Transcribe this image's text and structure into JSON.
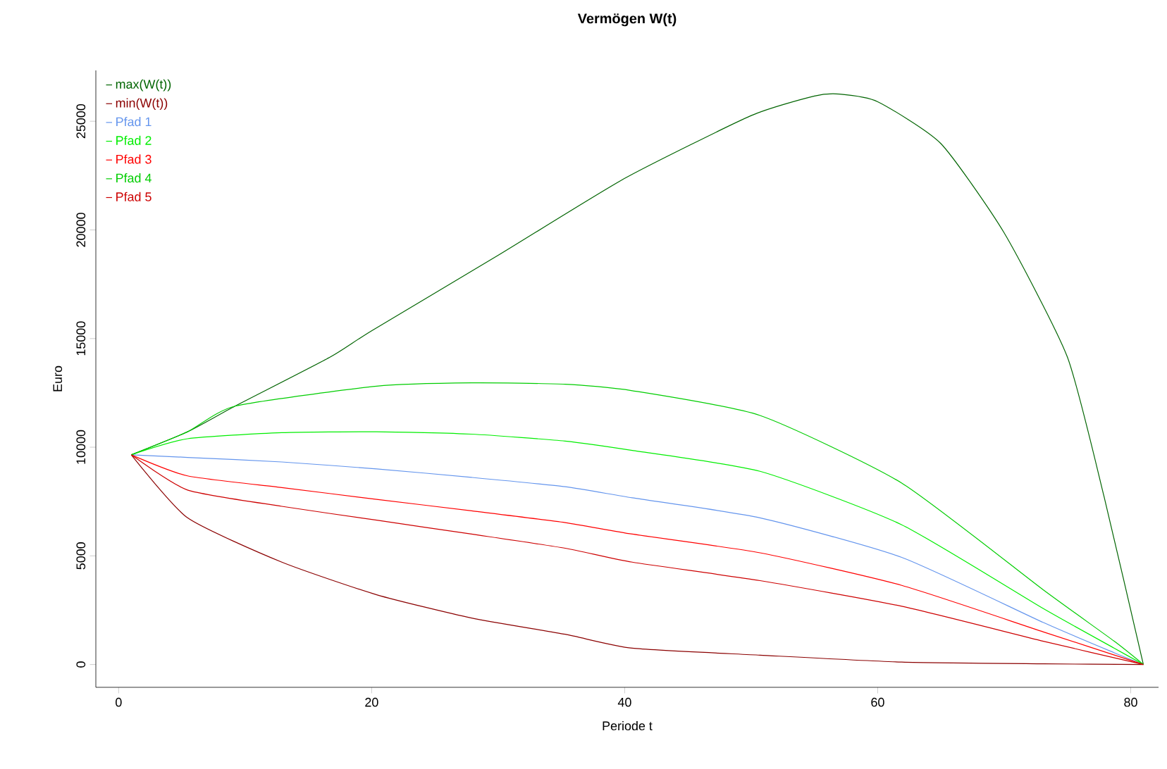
{
  "chart_data": {
    "type": "line",
    "title": "Vermögen W(t)",
    "xlabel": "Periode t",
    "ylabel": "Euro",
    "xlim": [
      -1.8,
      82.2
    ],
    "ylim": [
      -1050,
      27340
    ],
    "xticks": [
      0,
      20,
      40,
      60,
      80
    ],
    "yticks": [
      0,
      5000,
      10000,
      15000,
      20000,
      25000
    ],
    "legend": "top left",
    "grid": false,
    "marker": "none",
    "line_style": "solid",
    "series": [
      {
        "name": "max(W(t))",
        "color": "#006400",
        "x": [
          1,
          5.45,
          9.2,
          16.7,
          20,
          30,
          40,
          50,
          55,
          57,
          60,
          65,
          70,
          75,
          77.9,
          81
        ],
        "values": [
          9650,
          10710,
          11890,
          14140,
          15360,
          18830,
          22370,
          25260,
          26160,
          26250,
          25900,
          23970,
          19860,
          14140,
          7710,
          0
        ]
      },
      {
        "name": "min(W(t))",
        "color": "#8b0000",
        "x": [
          1,
          5.45,
          12.9,
          20.4,
          27.9,
          35.3,
          40.6,
          50.7,
          61.9,
          73.1,
          81
        ],
        "values": [
          9650,
          6750,
          4710,
          3210,
          2140,
          1390,
          750,
          430,
          110,
          30,
          0
        ]
      },
      {
        "name": "Pfad 1",
        "color": "#6495ed",
        "x": [
          1,
          5.45,
          12.9,
          20.4,
          27.9,
          35.3,
          40.6,
          50.7,
          61.9,
          73.1,
          78.7,
          81
        ],
        "values": [
          9650,
          9530,
          9320,
          9000,
          8610,
          8180,
          7670,
          6750,
          4930,
          1930,
          540,
          0
        ]
      },
      {
        "name": "Pfad 2",
        "color": "#00ee00",
        "x": [
          1,
          5.45,
          12.9,
          20.4,
          27.9,
          35.3,
          40.6,
          50.7,
          61.9,
          73.1,
          78.7,
          81
        ],
        "values": [
          9650,
          10390,
          10670,
          10710,
          10600,
          10280,
          9850,
          8890,
          6430,
          2570,
          750,
          0
        ]
      },
      {
        "name": "Pfad 3",
        "color": "#ff0000",
        "x": [
          1,
          5.45,
          12.9,
          20.4,
          27.9,
          35.3,
          40.6,
          50.7,
          61.9,
          73.1,
          81
        ],
        "values": [
          9650,
          8680,
          8140,
          7600,
          7070,
          6530,
          6000,
          5140,
          3640,
          1500,
          0
        ]
      },
      {
        "name": "Pfad 4",
        "color": "#00cd00",
        "x": [
          1,
          5.45,
          9.2,
          20.4,
          27.9,
          35.3,
          40.6,
          50.7,
          61.9,
          73.1,
          78.7,
          81
        ],
        "values": [
          9650,
          10710,
          11890,
          12810,
          12960,
          12900,
          12600,
          11460,
          8350,
          3430,
          1070,
          0
        ]
      },
      {
        "name": "Pfad 5",
        "color": "#cd0000",
        "x": [
          1,
          5.45,
          12.9,
          20.4,
          27.9,
          35.3,
          40.6,
          50.7,
          61.9,
          73.1,
          81
        ],
        "values": [
          9650,
          8030,
          7280,
          6640,
          6000,
          5350,
          4710,
          3860,
          2680,
          1070,
          0
        ]
      }
    ]
  }
}
